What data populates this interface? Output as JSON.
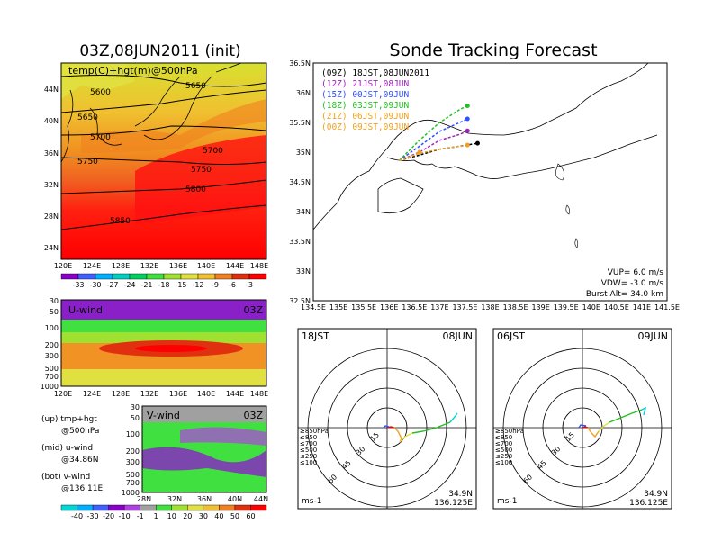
{
  "left_title": "03Z,08JUN2011 (init)",
  "main_title": "Sonde Tracking Forecast",
  "map500": {
    "label": "temp(C)+hgt(m)@500hPa",
    "lat_labels": [
      "44N",
      "40N",
      "36N",
      "32N",
      "28N",
      "24N"
    ],
    "lon_labels": [
      "120E",
      "124E",
      "128E",
      "132E",
      "136E",
      "140E",
      "144E",
      "148E"
    ],
    "contour_labels": [
      "5600",
      "5650",
      "5650",
      "5700",
      "5700",
      "5750",
      "5750",
      "5800",
      "5850"
    ]
  },
  "temp_colorbar": {
    "labels": [
      "-33",
      "-30",
      "-27",
      "-24",
      "-21",
      "-18",
      "-15",
      "-12",
      "-9",
      "-6",
      "-3"
    ],
    "colors": [
      "#8a00c8",
      "#4060ff",
      "#00b0ff",
      "#00d0c0",
      "#00d060",
      "#40e040",
      "#a0e030",
      "#e0e040",
      "#f0c030",
      "#f08020",
      "#e03010",
      "#ff0000"
    ]
  },
  "uwind": {
    "title": "U-wind",
    "time": "03Z",
    "p_labels": [
      "30",
      "50",
      "100",
      "200",
      "300",
      "500",
      "700",
      "1000"
    ],
    "lon_labels": [
      "120E",
      "124E",
      "128E",
      "132E",
      "136E",
      "140E",
      "144E",
      "148E"
    ]
  },
  "vwind": {
    "title": "V-wind",
    "time": "03Z",
    "p_labels": [
      "30",
      "50",
      "100",
      "200",
      "300",
      "500",
      "700",
      "1000"
    ],
    "lat_labels": [
      "28N",
      "32N",
      "36N",
      "40N",
      "44N"
    ]
  },
  "legend_text": {
    "up": "(up) tmp+hgt",
    "up2": "@500hPa",
    "mid": "(mid) u-wind",
    "mid2": "@34.86N",
    "bot": "(bot) v-wind",
    "bot2": "@136.11E"
  },
  "wind_colorbar": {
    "labels": [
      "-40",
      "-30",
      "-20",
      "-10",
      "-1",
      "1",
      "10",
      "20",
      "30",
      "40",
      "50",
      "60"
    ],
    "colors": [
      "#00d8d8",
      "#00b0ff",
      "#4060ff",
      "#8a00c8",
      "#b040e0",
      "#a0a0a0",
      "#40e040",
      "#a0e030",
      "#e0e040",
      "#f0c030",
      "#f08020",
      "#e03010",
      "#ff0000"
    ]
  },
  "chart_data": {
    "type": "line",
    "title": "Sonde Tracking Forecast",
    "xlabel": "",
    "ylabel": "",
    "xlim": [
      134.5,
      141.5
    ],
    "ylim": [
      32.5,
      36.5
    ],
    "x_ticks": [
      "134.5E",
      "135E",
      "135.5E",
      "136E",
      "136.5E",
      "137E",
      "137.5E",
      "138E",
      "138.5E",
      "139E",
      "139.5E",
      "140E",
      "140.5E",
      "141E",
      "141.5E"
    ],
    "y_ticks": [
      "36.5N",
      "36N",
      "35.5N",
      "35N",
      "34.5N",
      "34N",
      "33.5N",
      "33N",
      "32.5N"
    ],
    "series": [
      {
        "name": "(09Z) 18JST,08JUN2011",
        "color": "#000000",
        "x": [
          136.2,
          136.6,
          137.0,
          137.4,
          137.75
        ],
        "y": [
          34.86,
          34.95,
          35.05,
          35.1,
          35.15
        ]
      },
      {
        "name": "(12Z) 21JST,08JUN",
        "color": "#a020c0",
        "x": [
          136.2,
          136.6,
          137.0,
          137.4,
          137.55
        ],
        "y": [
          34.86,
          35.0,
          35.2,
          35.3,
          35.36
        ]
      },
      {
        "name": "(15Z) 00JST,09JUN",
        "color": "#3050ff",
        "x": [
          136.2,
          136.6,
          137.0,
          137.4,
          137.55
        ],
        "y": [
          34.86,
          35.1,
          35.35,
          35.5,
          35.56
        ]
      },
      {
        "name": "(18Z) 03JST,09JUN",
        "color": "#20c020",
        "x": [
          136.2,
          136.6,
          137.0,
          137.4,
          137.55
        ],
        "y": [
          34.86,
          35.2,
          35.5,
          35.72,
          35.78
        ]
      },
      {
        "name": "(21Z) 06JST,09JUN",
        "color": "#f0a020",
        "x": [
          136.2,
          136.6,
          137.0,
          137.4,
          137.55
        ],
        "y": [
          34.86,
          34.98,
          35.05,
          35.1,
          35.12
        ]
      },
      {
        "name": "(00Z) 09JST,09JUN",
        "color": "#f0a020",
        "x": [
          136.2,
          136.5,
          136.6
        ],
        "y": [
          34.86,
          34.95,
          35.0
        ]
      }
    ],
    "params": {
      "vup": "VUP= 6.0 m/s",
      "vdw": "VDW= -3.0 m/s",
      "burst": "Burst Alt= 34.0 km"
    }
  },
  "hodo_left": {
    "time": "18JST",
    "date": "08JUN",
    "lat": "34.9N",
    "lon": "136.125E",
    "unit": "ms-1",
    "ring_labels": [
      "15",
      "30",
      "45",
      "60"
    ],
    "levels": [
      {
        "label": "≥850hPa",
        "color": "#ff0000"
      },
      {
        "label": "≤850",
        "color": "#f0a020"
      },
      {
        "label": "≤700",
        "color": "#e0e040"
      },
      {
        "label": "≤500",
        "color": "#20c020"
      },
      {
        "label": "≤250",
        "color": "#00d0d0"
      },
      {
        "label": "≤100",
        "color": "#3050ff"
      }
    ]
  },
  "hodo_right": {
    "time": "06JST",
    "date": "09JUN",
    "lat": "34.9N",
    "lon": "136.125E",
    "unit": "ms-1",
    "ring_labels": [
      "15",
      "30",
      "45",
      "60"
    ],
    "levels": [
      {
        "label": "≥850hPa",
        "color": "#ff0000"
      },
      {
        "label": "≤850",
        "color": "#f0a020"
      },
      {
        "label": "≤700",
        "color": "#e0e040"
      },
      {
        "label": "≤500",
        "color": "#20c020"
      },
      {
        "label": "≤250",
        "color": "#00d0d0"
      },
      {
        "label": "≤100",
        "color": "#3050ff"
      }
    ]
  }
}
